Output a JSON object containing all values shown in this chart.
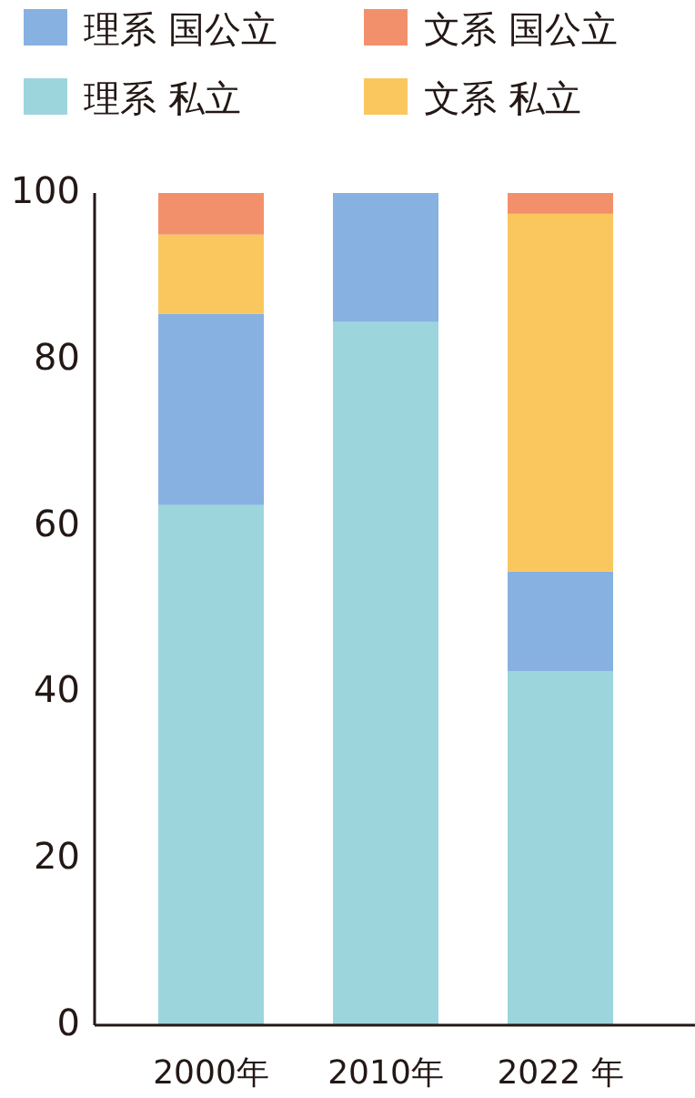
{
  "chart_data": {
    "type": "bar",
    "stacked": true,
    "categories": [
      "2000年",
      "2010年",
      "2022 年"
    ],
    "series": [
      {
        "name": "理系 私立",
        "color": "#9dd5dd",
        "values": [
          62.5,
          84.5,
          42.5
        ]
      },
      {
        "name": "理系 国公立",
        "color": "#87b1e1",
        "values": [
          23,
          15.5,
          12
        ]
      },
      {
        "name": "文系 私立",
        "color": "#fac75e",
        "values": [
          9.5,
          0,
          43
        ]
      },
      {
        "name": "文系 国公立",
        "color": "#f3906c",
        "values": [
          5,
          0,
          2.5
        ]
      }
    ],
    "ylim": [
      0,
      100
    ],
    "yticks": [
      0,
      20,
      40,
      60,
      80,
      100
    ],
    "grid": false,
    "legend": "top"
  }
}
